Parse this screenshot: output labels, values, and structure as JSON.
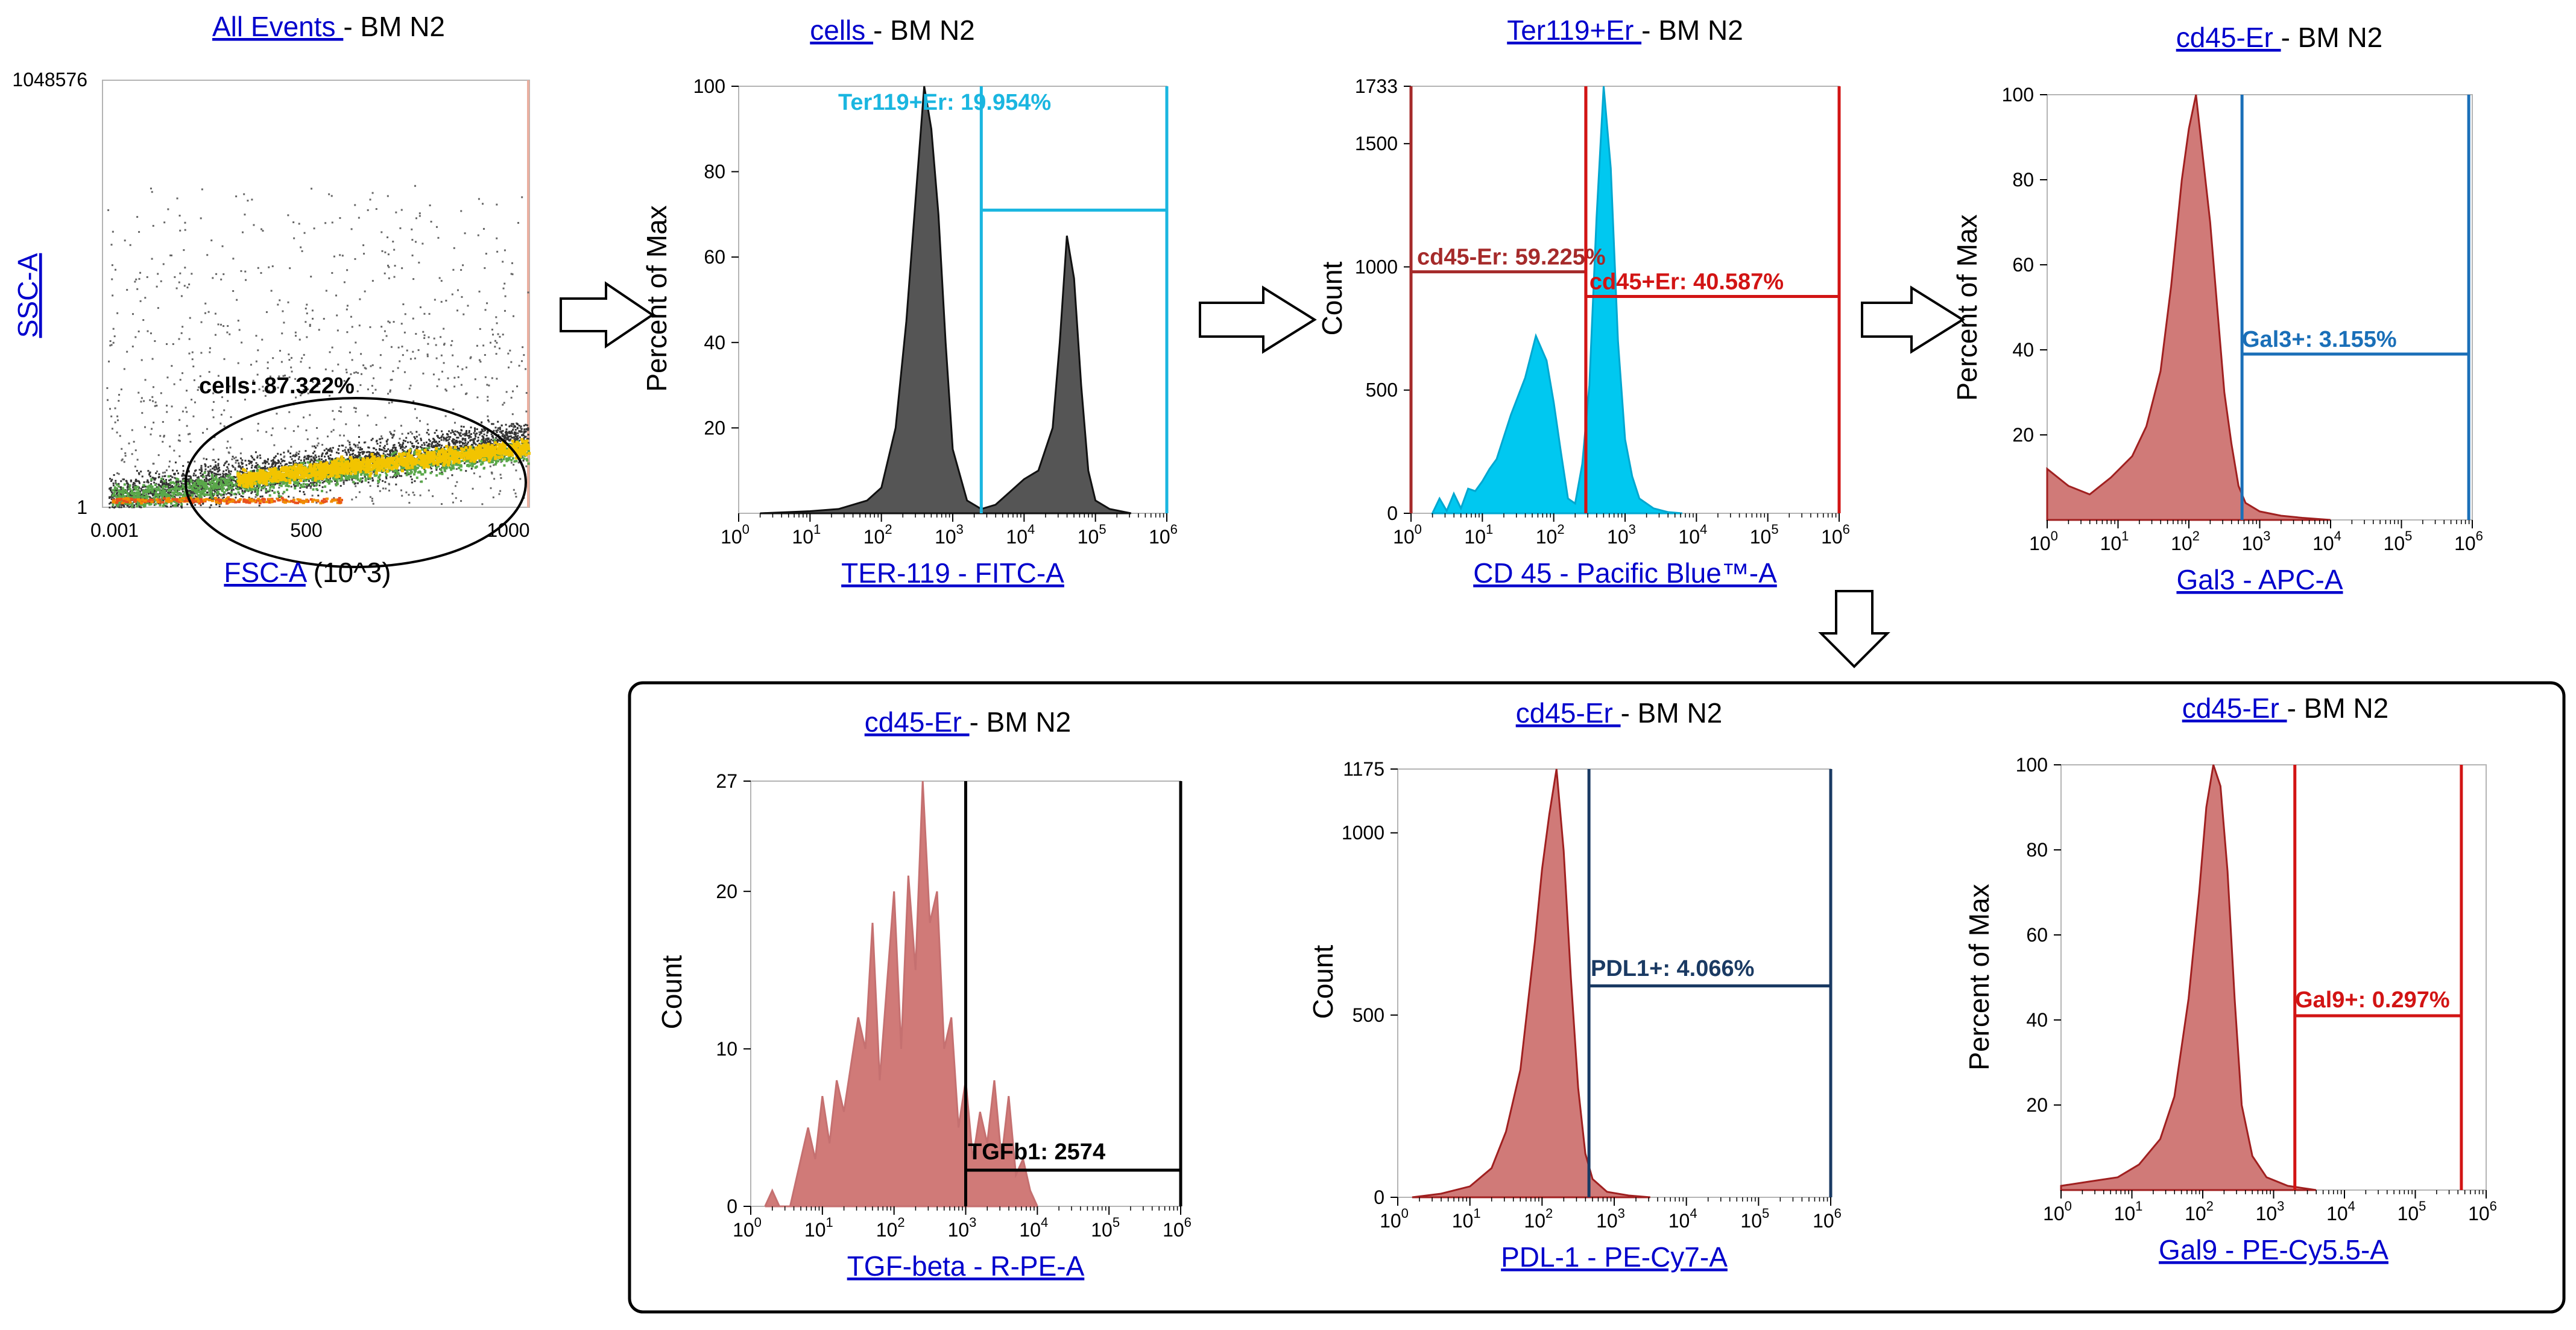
{
  "colors": {
    "link": "#0000cc",
    "ter119_gate": "#1ab6e0",
    "cd45_gate": "#d21414",
    "cd45_left_gate": "#a52a2a",
    "gal3_gate": "#1a6fb8",
    "pdl1_gate": "#1a3a63",
    "gal9_gate": "#d21414",
    "tgfb1_gate": "#000000",
    "gray_hist": "#555555",
    "cyan_hist": "#00c8f0",
    "rose_hist": "#d07a78",
    "rose_edge": "#a02020"
  },
  "chart_data": [
    {
      "id": "p1",
      "type": "scatter",
      "title": {
        "link": "All Events ",
        "rest": "- BM N2"
      },
      "xlabel": {
        "link": "FSC-A",
        "rest": " (10^3)"
      },
      "ylabel": "SSC-A",
      "xscale": "linear",
      "x_ticks": [
        {
          "label": "0.001"
        },
        {
          "label": "500"
        },
        {
          "label": "1000"
        }
      ],
      "y_ticks": [
        {
          "label": "1048576"
        },
        {
          "label": "1"
        }
      ],
      "xlim": [
        0,
        1000
      ],
      "ylim": [
        1,
        1048576
      ],
      "gate": {
        "label": "cells: 87.322%",
        "shape": "ellipse"
      }
    },
    {
      "id": "p2",
      "type": "area",
      "title": {
        "link": "cells ",
        "rest": "- BM N2"
      },
      "xlabel": "TER-119 - FITC-A",
      "ylabel": "Percent of Max",
      "xscale": "log",
      "xlim": [
        0,
        6
      ],
      "ylim": [
        0,
        100
      ],
      "y_ticks": [
        "100",
        "80",
        "60",
        "40",
        "20"
      ],
      "x_ticks": [
        "0",
        "1",
        "2",
        "3",
        "4",
        "5",
        "6"
      ],
      "x": [
        0.3,
        1.0,
        1.4,
        1.8,
        2.0,
        2.2,
        2.35,
        2.5,
        2.6,
        2.7,
        2.8,
        2.9,
        3.0,
        3.2,
        3.4,
        3.6,
        3.8,
        4.0,
        4.2,
        4.4,
        4.5,
        4.6,
        4.7,
        4.8,
        4.9,
        5.0,
        5.2,
        5.5
      ],
      "y": [
        0,
        0.5,
        1,
        3,
        6,
        20,
        45,
        78,
        100,
        90,
        70,
        40,
        15,
        3,
        1,
        2,
        5,
        8,
        10,
        20,
        40,
        65,
        55,
        30,
        10,
        3,
        1,
        0
      ],
      "gate": {
        "label": "Ter119+Er: 19.954%",
        "x_from": 3.4,
        "x_to": 6.0,
        "y_level": 71
      }
    },
    {
      "id": "p3",
      "type": "area",
      "title": {
        "link": "Ter119+Er ",
        "rest": "- BM N2"
      },
      "xlabel": "CD 45 - Pacific Blue™-A",
      "ylabel": "Count",
      "xscale": "log",
      "xlim": [
        0,
        6
      ],
      "ylim": [
        0,
        1733
      ],
      "y_ticks": [
        "1733",
        "1500",
        "1000",
        "500",
        "0"
      ],
      "x_ticks": [
        "0",
        "1",
        "2",
        "3",
        "4",
        "5",
        "6"
      ],
      "x": [
        0.3,
        0.4,
        0.5,
        0.6,
        0.7,
        0.8,
        0.9,
        1.0,
        1.1,
        1.2,
        1.4,
        1.6,
        1.75,
        1.9,
        2.0,
        2.1,
        2.2,
        2.3,
        2.4,
        2.5,
        2.6,
        2.7,
        2.8,
        2.9,
        3.0,
        3.1,
        3.2,
        3.4,
        3.6,
        3.8
      ],
      "y": [
        0,
        60,
        10,
        80,
        20,
        100,
        90,
        130,
        180,
        220,
        400,
        550,
        720,
        620,
        450,
        250,
        60,
        40,
        200,
        520,
        1200,
        1733,
        1400,
        700,
        300,
        150,
        60,
        20,
        5,
        0
      ],
      "gates": [
        {
          "label": "cd45-Er: 59.225%",
          "x_from": 0,
          "x_to": 2.45,
          "y_level": 980
        },
        {
          "label": "cd45+Er: 40.587%",
          "x_from": 2.45,
          "x_to": 6.0,
          "y_level": 880
        }
      ]
    },
    {
      "id": "p4",
      "type": "area",
      "title": {
        "link": "cd45-Er ",
        "rest": "- BM N2"
      },
      "xlabel": "Gal3 - APC-A",
      "ylabel": "Percent of Max",
      "xscale": "log",
      "xlim": [
        0,
        6
      ],
      "ylim": [
        0,
        100
      ],
      "y_ticks": [
        "100",
        "80",
        "60",
        "40",
        "20"
      ],
      "x_ticks": [
        "0",
        "1",
        "2",
        "3",
        "4",
        "5",
        "6"
      ],
      "x": [
        0.0,
        0.3,
        0.6,
        0.9,
        1.2,
        1.4,
        1.6,
        1.75,
        1.9,
        2.0,
        2.1,
        2.2,
        2.3,
        2.4,
        2.5,
        2.6,
        2.7,
        2.8,
        3.0,
        3.3,
        3.6,
        4.0
      ],
      "y": [
        12,
        8,
        6,
        10,
        15,
        22,
        35,
        55,
        80,
        92,
        100,
        85,
        70,
        50,
        30,
        18,
        8,
        4,
        2,
        1,
        0.5,
        0
      ],
      "gate": {
        "label": "Gal3+: 3.155%",
        "x_from": 2.75,
        "x_to": 5.95,
        "y_level": 39
      }
    },
    {
      "id": "p5",
      "type": "area",
      "title": {
        "link": "cd45-Er ",
        "rest": "- BM N2"
      },
      "xlabel": "TGF-beta - R-PE-A",
      "ylabel": "Count",
      "xscale": "log",
      "xlim": [
        0,
        6
      ],
      "ylim": [
        0,
        27
      ],
      "y_ticks": [
        "27",
        "20",
        "10",
        "0"
      ],
      "x_ticks": [
        "0",
        "1",
        "2",
        "3",
        "4",
        "5",
        "6"
      ],
      "x": [
        0.2,
        0.3,
        0.4,
        0.55,
        0.65,
        0.8,
        0.9,
        1.0,
        1.1,
        1.2,
        1.3,
        1.4,
        1.5,
        1.6,
        1.7,
        1.8,
        1.9,
        2.0,
        2.1,
        2.2,
        2.3,
        2.4,
        2.5,
        2.6,
        2.7,
        2.8,
        2.9,
        3.0,
        3.1,
        3.2,
        3.3,
        3.4,
        3.5,
        3.6,
        3.7,
        3.8,
        3.9,
        4.0
      ],
      "y": [
        0,
        1,
        0,
        0,
        2,
        5,
        3,
        7,
        4,
        8,
        6,
        9,
        12,
        10,
        18,
        8,
        14,
        20,
        10,
        21,
        15,
        27,
        18,
        20,
        10,
        12,
        5,
        8,
        3,
        6,
        4,
        8,
        3,
        7,
        2,
        3,
        1,
        0
      ],
      "gate": {
        "label": "TGFb1: 2574",
        "x_from": 3.0,
        "x_to": 6.0,
        "y_level": 2.3
      }
    },
    {
      "id": "p6",
      "type": "area",
      "title": {
        "link": "cd45-Er ",
        "rest": "- BM N2"
      },
      "xlabel": "PDL-1 - PE-Cy7-A",
      "ylabel": "Count",
      "xscale": "log",
      "xlim": [
        0,
        6
      ],
      "ylim": [
        0,
        1175
      ],
      "y_ticks": [
        "1175",
        "1000",
        "500",
        "0"
      ],
      "x_ticks": [
        "0",
        "1",
        "2",
        "3",
        "4",
        "5",
        "6"
      ],
      "x": [
        0.2,
        0.6,
        1.0,
        1.3,
        1.5,
        1.7,
        1.9,
        2.0,
        2.1,
        2.2,
        2.3,
        2.4,
        2.5,
        2.6,
        2.7,
        2.9,
        3.2,
        3.5
      ],
      "y": [
        0,
        10,
        30,
        80,
        180,
        350,
        700,
        900,
        1050,
        1175,
        950,
        600,
        300,
        120,
        50,
        15,
        5,
        0
      ],
      "gate": {
        "label": "PDL1+: 4.066%",
        "x_from": 2.65,
        "x_to": 6.0,
        "y_level": 580
      }
    },
    {
      "id": "p7",
      "type": "area",
      "title": {
        "link": "cd45-Er ",
        "rest": "- BM N2"
      },
      "xlabel": "Gal9 - PE-Cy5.5-A",
      "ylabel": "Percent of Max",
      "xscale": "log",
      "xlim": [
        0,
        6
      ],
      "ylim": [
        0,
        100
      ],
      "y_ticks": [
        "100",
        "80",
        "60",
        "40",
        "20"
      ],
      "x_ticks": [
        "0",
        "1",
        "2",
        "3",
        "4",
        "5",
        "6"
      ],
      "x": [
        0.0,
        0.4,
        0.8,
        1.1,
        1.4,
        1.6,
        1.8,
        1.95,
        2.05,
        2.15,
        2.25,
        2.35,
        2.45,
        2.55,
        2.7,
        2.9,
        3.2,
        3.6
      ],
      "y": [
        1,
        2,
        3,
        6,
        12,
        22,
        45,
        70,
        90,
        100,
        95,
        75,
        45,
        20,
        8,
        3,
        1,
        0
      ],
      "gate": {
        "label": "Gal9+: 0.297%",
        "x_from": 3.3,
        "x_to": 5.65,
        "y_level": 41
      }
    }
  ]
}
